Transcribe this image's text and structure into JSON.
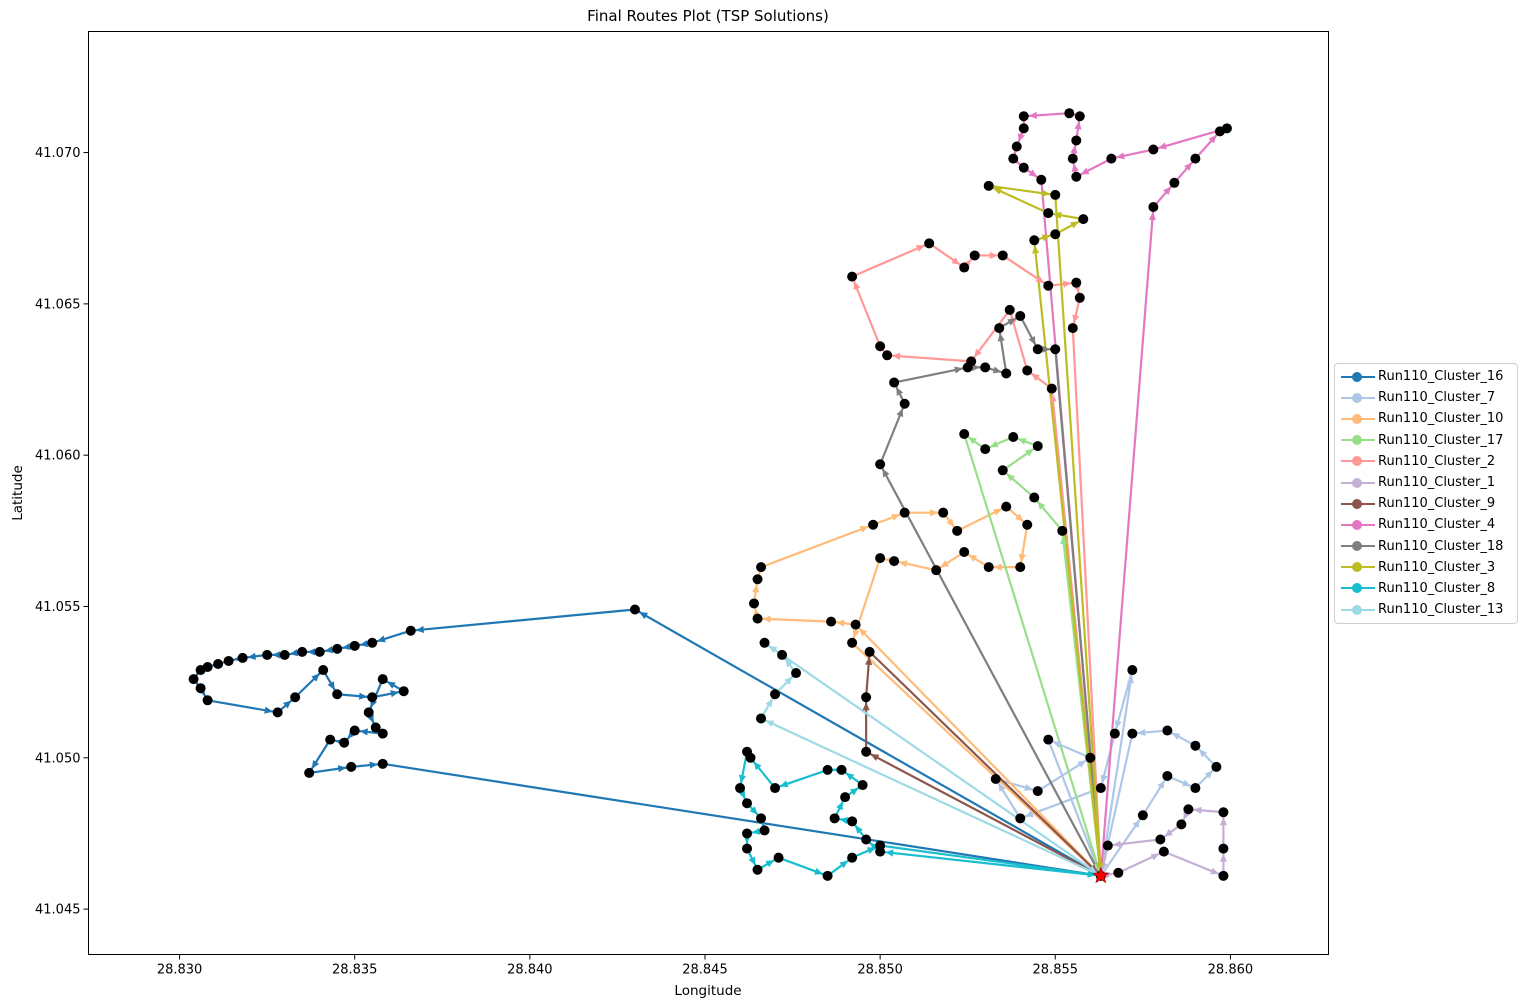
{
  "chart_data": {
    "type": "line",
    "title": "Final Routes Plot (TSP Solutions)",
    "xlabel": "Longitude",
    "ylabel": "Latitude",
    "xlim": [
      28.8274,
      28.8628
    ],
    "ylim": [
      41.0435,
      41.074
    ],
    "xticks": [
      "28.830",
      "28.835",
      "28.840",
      "28.845",
      "28.850",
      "28.855",
      "28.860"
    ],
    "yticks": [
      "41.045",
      "41.050",
      "41.055",
      "41.060",
      "41.065",
      "41.070"
    ],
    "grid": false,
    "legend_position": "center-right-outside",
    "depot": {
      "x": 28.8563,
      "y": 41.0461,
      "color": "#ff0000",
      "marker": "star"
    },
    "series": [
      {
        "name": "Run110_Cluster_16",
        "color": "#1f77b4",
        "points": [
          [
            28.8563,
            41.0461
          ],
          [
            28.843,
            41.0549
          ],
          [
            28.8366,
            41.0542
          ],
          [
            28.8355,
            41.0538
          ],
          [
            28.835,
            41.0537
          ],
          [
            28.8345,
            41.0536
          ],
          [
            28.834,
            41.0535
          ],
          [
            28.8335,
            41.0535
          ],
          [
            28.833,
            41.0534
          ],
          [
            28.8325,
            41.0534
          ],
          [
            28.8318,
            41.0533
          ],
          [
            28.8314,
            41.0532
          ],
          [
            28.8311,
            41.0531
          ],
          [
            28.8308,
            41.053
          ],
          [
            28.8306,
            41.0529
          ],
          [
            28.8304,
            41.0526
          ],
          [
            28.8306,
            41.0523
          ],
          [
            28.8308,
            41.0519
          ],
          [
            28.8328,
            41.0515
          ],
          [
            28.8333,
            41.052
          ],
          [
            28.8341,
            41.0529
          ],
          [
            28.8345,
            41.0521
          ],
          [
            28.8355,
            41.052
          ],
          [
            28.8364,
            41.0522
          ],
          [
            28.8358,
            41.0526
          ],
          [
            28.8354,
            41.0515
          ],
          [
            28.8356,
            41.051
          ],
          [
            28.8358,
            41.0508
          ],
          [
            28.835,
            41.0509
          ],
          [
            28.8347,
            41.0505
          ],
          [
            28.8343,
            41.0506
          ],
          [
            28.8337,
            41.0495
          ],
          [
            28.8349,
            41.0497
          ],
          [
            28.8358,
            41.0498
          ],
          [
            28.8563,
            41.0461
          ]
        ]
      },
      {
        "name": "Run110_Cluster_7",
        "color": "#aec7e8",
        "points": [
          [
            28.8563,
            41.0461
          ],
          [
            28.8572,
            41.0529
          ],
          [
            28.8567,
            41.0508
          ],
          [
            28.8563,
            41.049
          ],
          [
            28.854,
            41.048
          ],
          [
            28.8533,
            41.0493
          ],
          [
            28.8545,
            41.0489
          ],
          [
            28.856,
            41.05
          ],
          [
            28.8548,
            41.0506
          ],
          [
            28.8563,
            41.0461
          ],
          [
            28.8575,
            41.0481
          ],
          [
            28.8582,
            41.0494
          ],
          [
            28.859,
            41.049
          ],
          [
            28.8596,
            41.0497
          ],
          [
            28.859,
            41.0504
          ],
          [
            28.8582,
            41.0509
          ],
          [
            28.8572,
            41.0508
          ],
          [
            28.8563,
            41.0461
          ]
        ]
      },
      {
        "name": "Run110_Cluster_10",
        "color": "#ffbb78",
        "points": [
          [
            28.8563,
            41.0461
          ],
          [
            28.8493,
            41.0544
          ],
          [
            28.8486,
            41.0545
          ],
          [
            28.8465,
            41.0546
          ],
          [
            28.8464,
            41.0551
          ],
          [
            28.8465,
            41.0559
          ],
          [
            28.8466,
            41.0563
          ],
          [
            28.8498,
            41.0577
          ],
          [
            28.8507,
            41.0581
          ],
          [
            28.8518,
            41.0581
          ],
          [
            28.8522,
            41.0575
          ],
          [
            28.8536,
            41.0583
          ],
          [
            28.8542,
            41.0577
          ],
          [
            28.854,
            41.0563
          ],
          [
            28.8531,
            41.0563
          ],
          [
            28.8524,
            41.0568
          ],
          [
            28.8516,
            41.0562
          ],
          [
            28.8504,
            41.0565
          ],
          [
            28.85,
            41.0566
          ],
          [
            28.8492,
            41.0538
          ],
          [
            28.8563,
            41.0461
          ]
        ]
      },
      {
        "name": "Run110_Cluster_17",
        "color": "#98df8a",
        "points": [
          [
            28.8563,
            41.0461
          ],
          [
            28.8552,
            41.0575
          ],
          [
            28.8544,
            41.0586
          ],
          [
            28.8535,
            41.0595
          ],
          [
            28.8545,
            41.0603
          ],
          [
            28.8538,
            41.0606
          ],
          [
            28.853,
            41.0602
          ],
          [
            28.8524,
            41.0607
          ],
          [
            28.8563,
            41.0461
          ]
        ]
      },
      {
        "name": "Run110_Cluster_2",
        "color": "#ff9896",
        "points": [
          [
            28.8563,
            41.0461
          ],
          [
            28.8549,
            41.0622
          ],
          [
            28.8542,
            41.0628
          ],
          [
            28.8537,
            41.0648
          ],
          [
            28.8526,
            41.0631
          ],
          [
            28.8502,
            41.0633
          ],
          [
            28.85,
            41.0636
          ],
          [
            28.8492,
            41.0659
          ],
          [
            28.8514,
            41.067
          ],
          [
            28.8524,
            41.0662
          ],
          [
            28.8527,
            41.0666
          ],
          [
            28.8535,
            41.0666
          ],
          [
            28.8548,
            41.0656
          ],
          [
            28.8556,
            41.0657
          ],
          [
            28.8557,
            41.0652
          ],
          [
            28.8555,
            41.0642
          ],
          [
            28.8563,
            41.0461
          ]
        ]
      },
      {
        "name": "Run110_Cluster_1",
        "color": "#c5b0d5",
        "points": [
          [
            28.8563,
            41.0461
          ],
          [
            28.8568,
            41.0462
          ],
          [
            28.8581,
            41.0469
          ],
          [
            28.8598,
            41.0461
          ],
          [
            28.8598,
            41.047
          ],
          [
            28.8598,
            41.0482
          ],
          [
            28.8588,
            41.0483
          ],
          [
            28.8586,
            41.0478
          ],
          [
            28.858,
            41.0473
          ],
          [
            28.8565,
            41.0471
          ],
          [
            28.8563,
            41.0461
          ]
        ]
      },
      {
        "name": "Run110_Cluster_9",
        "color": "#8c564b",
        "points": [
          [
            28.8563,
            41.0461
          ],
          [
            28.8496,
            41.0502
          ],
          [
            28.8496,
            41.052
          ],
          [
            28.8497,
            41.0535
          ],
          [
            28.8563,
            41.0461
          ]
        ]
      },
      {
        "name": "Run110_Cluster_4",
        "color": "#e377c2",
        "points": [
          [
            28.8563,
            41.0461
          ],
          [
            28.8578,
            41.0682
          ],
          [
            28.8584,
            41.069
          ],
          [
            28.859,
            41.0698
          ],
          [
            28.8597,
            41.0707
          ],
          [
            28.8599,
            41.0708
          ],
          [
            28.8578,
            41.0701
          ],
          [
            28.8566,
            41.0698
          ],
          [
            28.8556,
            41.0692
          ],
          [
            28.8555,
            41.0698
          ],
          [
            28.8556,
            41.0704
          ],
          [
            28.8557,
            41.0712
          ],
          [
            28.8554,
            41.0713
          ],
          [
            28.8541,
            41.0712
          ],
          [
            28.8541,
            41.0708
          ],
          [
            28.8539,
            41.0702
          ],
          [
            28.8538,
            41.0698
          ],
          [
            28.8541,
            41.0695
          ],
          [
            28.8546,
            41.0691
          ],
          [
            28.8563,
            41.0461
          ]
        ]
      },
      {
        "name": "Run110_Cluster_18",
        "color": "#7f7f7f",
        "points": [
          [
            28.8563,
            41.0461
          ],
          [
            28.85,
            41.0597
          ],
          [
            28.8507,
            41.0617
          ],
          [
            28.8504,
            41.0624
          ],
          [
            28.8525,
            41.0629
          ],
          [
            28.853,
            41.0629
          ],
          [
            28.8536,
            41.0627
          ],
          [
            28.8534,
            41.0642
          ],
          [
            28.854,
            41.0646
          ],
          [
            28.8545,
            41.0635
          ],
          [
            28.855,
            41.0635
          ],
          [
            28.8563,
            41.0461
          ]
        ]
      },
      {
        "name": "Run110_Cluster_3",
        "color": "#bcbd22",
        "points": [
          [
            28.8563,
            41.0461
          ],
          [
            28.8544,
            41.0671
          ],
          [
            28.855,
            41.0673
          ],
          [
            28.8558,
            41.0678
          ],
          [
            28.8548,
            41.068
          ],
          [
            28.8531,
            41.0689
          ],
          [
            28.855,
            41.0686
          ],
          [
            28.8563,
            41.0461
          ]
        ]
      },
      {
        "name": "Run110_Cluster_8",
        "color": "#17becf",
        "points": [
          [
            28.8563,
            41.0461
          ],
          [
            28.85,
            41.0469
          ],
          [
            28.8496,
            41.0473
          ],
          [
            28.8492,
            41.0479
          ],
          [
            28.8487,
            41.048
          ],
          [
            28.849,
            41.0487
          ],
          [
            28.8495,
            41.0491
          ],
          [
            28.8489,
            41.0496
          ],
          [
            28.8485,
            41.0496
          ],
          [
            28.847,
            41.049
          ],
          [
            28.8463,
            41.05
          ],
          [
            28.8462,
            41.0502
          ],
          [
            28.846,
            41.049
          ],
          [
            28.8462,
            41.0485
          ],
          [
            28.8466,
            41.048
          ],
          [
            28.8467,
            41.0476
          ],
          [
            28.8462,
            41.0475
          ],
          [
            28.8462,
            41.047
          ],
          [
            28.8465,
            41.0463
          ],
          [
            28.8471,
            41.0467
          ],
          [
            28.8485,
            41.0461
          ],
          [
            28.8492,
            41.0467
          ],
          [
            28.85,
            41.0471
          ],
          [
            28.8563,
            41.0461
          ]
        ]
      },
      {
        "name": "Run110_Cluster_13",
        "color": "#9edae5",
        "points": [
          [
            28.8563,
            41.0461
          ],
          [
            28.8466,
            41.0513
          ],
          [
            28.847,
            41.0521
          ],
          [
            28.8476,
            41.0528
          ],
          [
            28.8472,
            41.0534
          ],
          [
            28.8467,
            41.0538
          ],
          [
            28.8563,
            41.0461
          ]
        ]
      }
    ]
  }
}
